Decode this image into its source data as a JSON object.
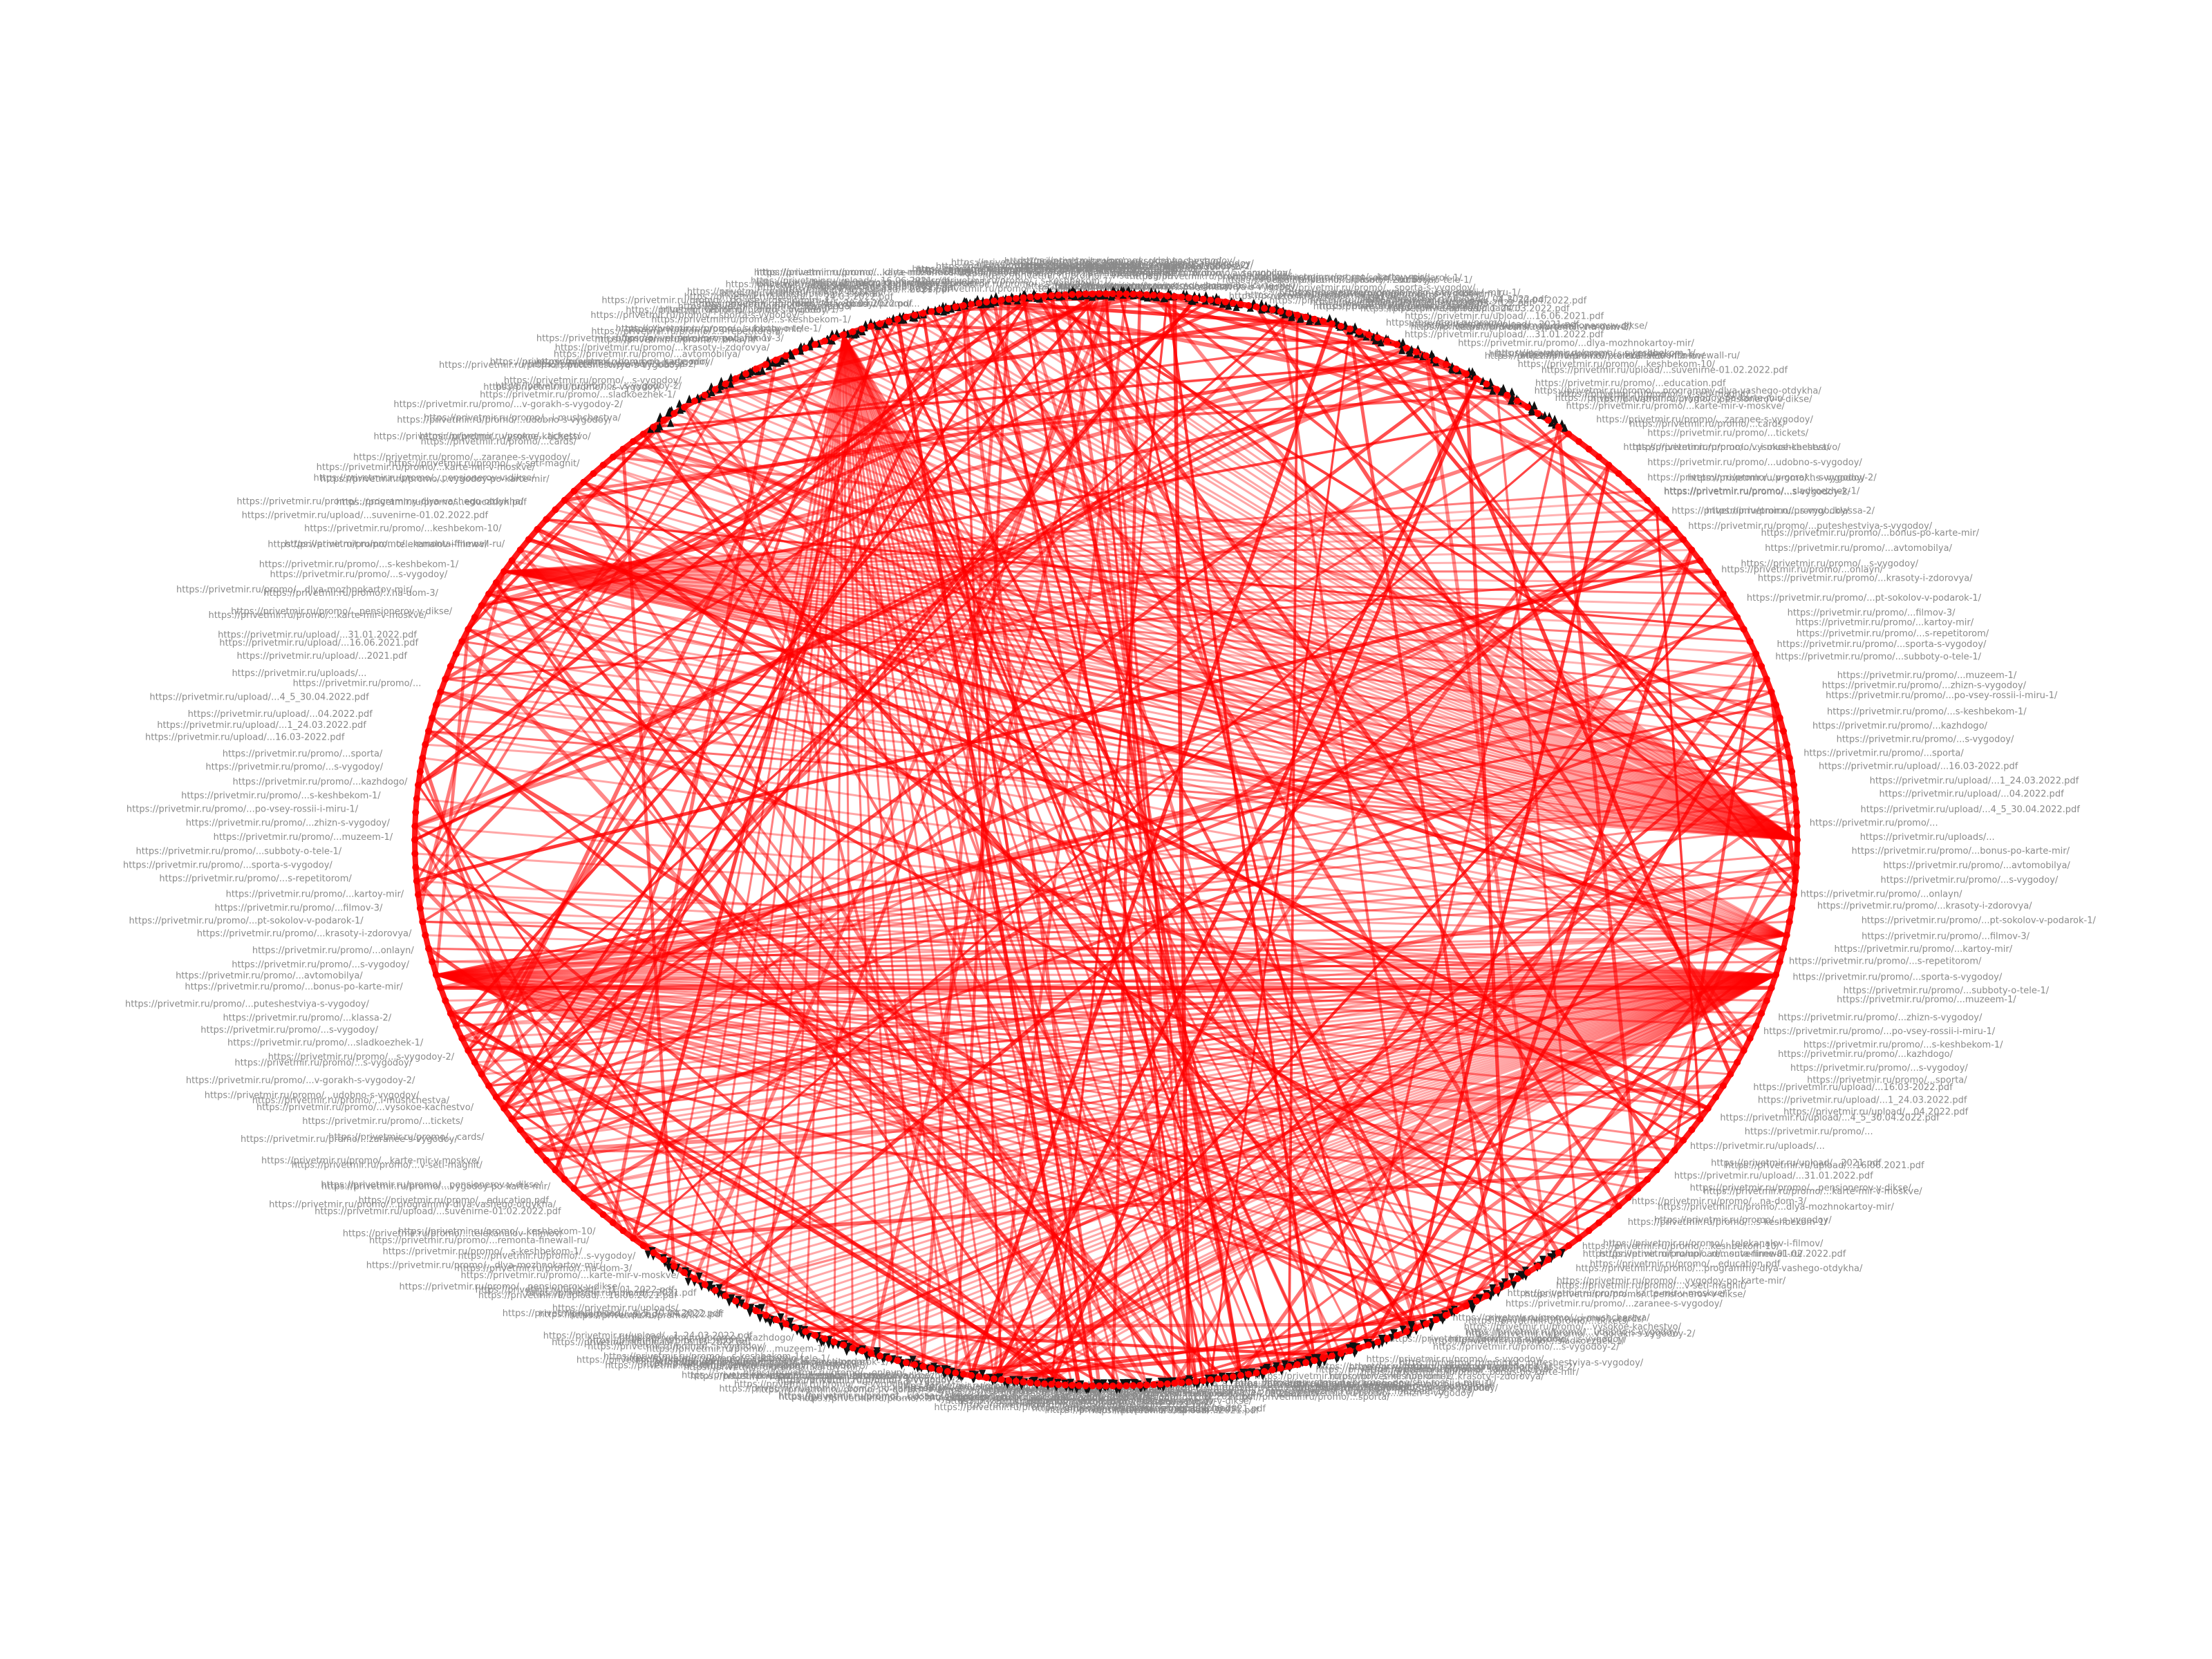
{
  "graph": {
    "node_color": "#ff0000",
    "edge_color": "#ff0000",
    "label_color": "#8a8a8a",
    "arrow_color": "#111111",
    "background": "#ffffff",
    "layout": "circular",
    "labels": [
      "https://privetmir.ru/uploads/...",
      "https://privetmir.ru/promo/...",
      "https://privetmir.ru/upload/...4_5_30.04.2022.pdf",
      "https://privetmir.ru/upload/...04.2022.pdf",
      "https://privetmir.ru/upload/...1_24.03.2022.pdf",
      "https://privetmir.ru/upload/...16.03-2022.pdf",
      "https://privetmir.ru/promo/...sporta/",
      "https://privetmir.ru/promo/...s-vygodoy/",
      "https://privetmir.ru/promo/...kazhdogo/",
      "https://privetmir.ru/promo/...s-keshbekom-1/",
      "https://privetmir.ru/promo/...po-vsey-rossii-i-miru-1/",
      "https://privetmir.ru/promo/...zhizn-s-vygodoy/",
      "https://privetmir.ru/promo/...muzeem-1/",
      "https://privetmir.ru/promo/...subboty-o-tele-1/",
      "https://privetmir.ru/promo/...sporta-s-vygodoy/",
      "https://privetmir.ru/promo/...s-repetitorom/",
      "https://privetmir.ru/promo/...kartoy-mir/",
      "https://privetmir.ru/promo/...filmov-3/",
      "https://privetmir.ru/promo/...pt-sokolov-v-podarok-1/",
      "https://privetmir.ru/promo/...krasoty-i-zdorovya/",
      "https://privetmir.ru/promo/...onlayn/",
      "https://privetmir.ru/promo/...s-vygodoy/",
      "https://privetmir.ru/promo/...avtomobilya/",
      "https://privetmir.ru/promo/...bonus-po-karte-mir/",
      "https://privetmir.ru/promo/...puteshestviya-s-vygodoy/",
      "https://privetmir.ru/promo/...klassa-2/",
      "https://privetmir.ru/promo/...s-vygodoy/",
      "https://privetmir.ru/promo/...sladkoezhek-1/",
      "https://privetmir.ru/promo/...s-vygodoy-2/",
      "https://privetmir.ru/promo/...s-vygodoy/",
      "https://privetmir.ru/promo/...v-gorakh-s-vygodoy-2/",
      "https://privetmir.ru/promo/...udobno-s-vygodoy/",
      "https://privetmir.ru/promo/...i-mushchestva/",
      "https://privetmir.ru/promo/...vysokoe-kachestvo/",
      "https://privetmir.ru/promo/...tickets/",
      "https://privetmir.ru/promo/...cards/",
      "https://privetmir.ru/promo/...zaranee-s-vygodoy/",
      "https://privetmir.ru/promo/...karte-mir-v-moskve/",
      "https://privetmir.ru/promo/...v-seti-magnit/",
      "https://privetmir.ru/promo/...pensionerov-v-dikse/",
      "https://privetmir.ru/promo/...vygodoy-po-karte-mir/",
      "https://privetmir.ru/promo/...programmy-dlya-vashego-otdykha/",
      "https://privetmir.ru/promo/...education.pdf",
      "https://privetmir.ru/upload/...suvenirne-01.02.2022.pdf",
      "https://privetmir.ru/promo/...keshbekom-10/",
      "https://privetmir.ru/promo/...remonta-finewall-ru/",
      "https://privetmir.ru/promo/...telekanalov-i-filmov/",
      "https://privetmir.ru/promo/...s-keshbekom-1/",
      "https://privetmir.ru/promo/...s-vygodoy/",
      "https://privetmir.ru/promo/...dlya-mozhnokartoy-mir/",
      "https://privetmir.ru/promo/...na-dom-3/",
      "https://privetmir.ru/promo/...pensionerov-v-dikse/",
      "https://privetmir.ru/promo/...karte-mir-v-moskve/",
      "https://privetmir.ru/upload/...31.01.2022.pdf",
      "https://privetmir.ru/upload/...16.06.2021.pdf",
      "https://privetmir.ru/upload/...2021.pdf"
    ]
  }
}
